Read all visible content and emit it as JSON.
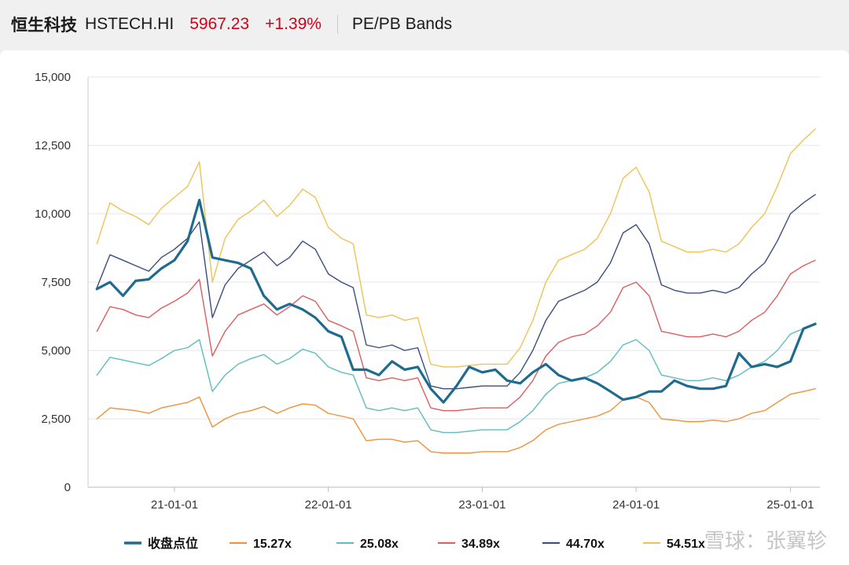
{
  "header": {
    "name": "恒生科技",
    "ticker": "HSTECH.HI",
    "price": "5967.23",
    "change": "+1.39%",
    "title": "PE/PB Bands"
  },
  "watermark": "雪球：张翼轸",
  "chart_data": {
    "type": "line",
    "ylim": [
      0,
      15000
    ],
    "yticks": [
      "0",
      "2,500",
      "5,000",
      "7,500",
      "10,000",
      "12,500",
      "15,000"
    ],
    "xticks": [
      "21-01-01",
      "22-01-01",
      "23-01-01",
      "24-01-01",
      "25-01-01"
    ],
    "grid": true,
    "legend_position": "bottom",
    "x": [
      "2020-07-01",
      "2020-08-01",
      "2020-09-01",
      "2020-10-01",
      "2020-11-01",
      "2020-12-01",
      "2021-01-01",
      "2021-02-01",
      "2021-03-01",
      "2021-04-01",
      "2021-05-01",
      "2021-06-01",
      "2021-07-01",
      "2021-08-01",
      "2021-09-01",
      "2021-10-01",
      "2021-11-01",
      "2021-12-01",
      "2022-01-01",
      "2022-02-01",
      "2022-03-01",
      "2022-04-01",
      "2022-05-01",
      "2022-06-01",
      "2022-07-01",
      "2022-08-01",
      "2022-09-01",
      "2022-10-01",
      "2022-11-01",
      "2022-12-01",
      "2023-01-01",
      "2023-02-01",
      "2023-03-01",
      "2023-04-01",
      "2023-05-01",
      "2023-06-01",
      "2023-07-01",
      "2023-08-01",
      "2023-09-01",
      "2023-10-01",
      "2023-11-01",
      "2023-12-01",
      "2024-01-01",
      "2024-02-01",
      "2024-03-01",
      "2024-04-01",
      "2024-05-01",
      "2024-06-01",
      "2024-07-01",
      "2024-08-01",
      "2024-09-01",
      "2024-10-01",
      "2024-11-01",
      "2024-12-01",
      "2025-01-01",
      "2025-02-01",
      "2025-03-01"
    ],
    "series": [
      {
        "name": "收盘点位",
        "color": "#1f6b8f",
        "width": 3.2,
        "values": [
          7250,
          7500,
          7000,
          7550,
          7600,
          8000,
          8300,
          9000,
          10500,
          8400,
          8300,
          8200,
          8000,
          7000,
          6500,
          6700,
          6500,
          6200,
          5700,
          5500,
          4300,
          4300,
          4100,
          4600,
          4300,
          4400,
          3600,
          3100,
          3700,
          4400,
          4200,
          4300,
          3900,
          3800,
          4200,
          4500,
          4100,
          3900,
          4000,
          3800,
          3500,
          3200,
          3300,
          3500,
          3500,
          3900,
          3700,
          3600,
          3600,
          3700,
          4900,
          4400,
          4500,
          4400,
          4600,
          5800,
          5967
        ]
      },
      {
        "name": "15.27x",
        "color": "#f0903a",
        "width": 1.4,
        "values": [
          2500,
          2900,
          2850,
          2800,
          2700,
          2900,
          3000,
          3100,
          3300,
          2200,
          2500,
          2700,
          2800,
          2950,
          2700,
          2900,
          3050,
          3000,
          2700,
          2600,
          2500,
          1700,
          1750,
          1750,
          1650,
          1700,
          1300,
          1250,
          1250,
          1250,
          1300,
          1300,
          1300,
          1450,
          1700,
          2100,
          2300,
          2400,
          2500,
          2600,
          2800,
          3200,
          3300,
          3100,
          2500,
          2450,
          2400,
          2400,
          2450,
          2400,
          2500,
          2700,
          2800,
          3100,
          3400,
          3500,
          3600
        ]
      },
      {
        "name": "25.08x",
        "color": "#5dbdbf",
        "width": 1.4,
        "values": [
          4100,
          4750,
          4650,
          4550,
          4450,
          4700,
          5000,
          5100,
          5400,
          3500,
          4100,
          4500,
          4700,
          4850,
          4500,
          4700,
          5050,
          4900,
          4400,
          4200,
          4100,
          2900,
          2800,
          2900,
          2800,
          2900,
          2100,
          2000,
          2000,
          2050,
          2100,
          2100,
          2100,
          2400,
          2800,
          3400,
          3800,
          3900,
          4000,
          4200,
          4600,
          5200,
          5400,
          5000,
          4100,
          4000,
          3900,
          3900,
          4000,
          3900,
          4100,
          4400,
          4600,
          5000,
          5600,
          5800,
          6000
        ]
      },
      {
        "name": "34.89x",
        "color": "#df5d5e",
        "width": 1.4,
        "values": [
          5700,
          6600,
          6500,
          6300,
          6200,
          6550,
          6800,
          7100,
          7600,
          4800,
          5700,
          6300,
          6500,
          6700,
          6300,
          6600,
          7000,
          6800,
          6100,
          5900,
          5700,
          4000,
          3900,
          4000,
          3900,
          4000,
          2900,
          2800,
          2800,
          2850,
          2900,
          2900,
          2900,
          3300,
          3900,
          4800,
          5300,
          5500,
          5600,
          5900,
          6400,
          7300,
          7500,
          7000,
          5700,
          5600,
          5500,
          5500,
          5600,
          5500,
          5700,
          6100,
          6400,
          7000,
          7800,
          8100,
          8300
        ]
      },
      {
        "name": "44.70x",
        "color": "#3a4d82",
        "width": 1.4,
        "values": [
          7300,
          8500,
          8300,
          8100,
          7900,
          8400,
          8700,
          9100,
          9700,
          6200,
          7400,
          8000,
          8300,
          8600,
          8100,
          8400,
          9000,
          8700,
          7800,
          7500,
          7300,
          5200,
          5100,
          5200,
          5000,
          5100,
          3700,
          3600,
          3600,
          3650,
          3700,
          3700,
          3700,
          4200,
          5000,
          6100,
          6800,
          7000,
          7200,
          7500,
          8200,
          9300,
          9600,
          8900,
          7400,
          7200,
          7100,
          7100,
          7200,
          7100,
          7300,
          7800,
          8200,
          9000,
          10000,
          10400,
          10700
        ]
      },
      {
        "name": "54.51x",
        "color": "#eec356",
        "width": 1.4,
        "values": [
          8900,
          10400,
          10100,
          9900,
          9600,
          10200,
          10600,
          11000,
          11900,
          7500,
          9100,
          9800,
          10100,
          10500,
          9900,
          10300,
          10900,
          10600,
          9500,
          9100,
          8900,
          6300,
          6200,
          6300,
          6100,
          6200,
          4500,
          4400,
          4400,
          4450,
          4500,
          4500,
          4500,
          5100,
          6100,
          7500,
          8300,
          8500,
          8700,
          9100,
          10000,
          11300,
          11700,
          10800,
          9000,
          8800,
          8600,
          8600,
          8700,
          8600,
          8900,
          9500,
          10000,
          11000,
          12200,
          12700,
          13100
        ]
      }
    ]
  }
}
